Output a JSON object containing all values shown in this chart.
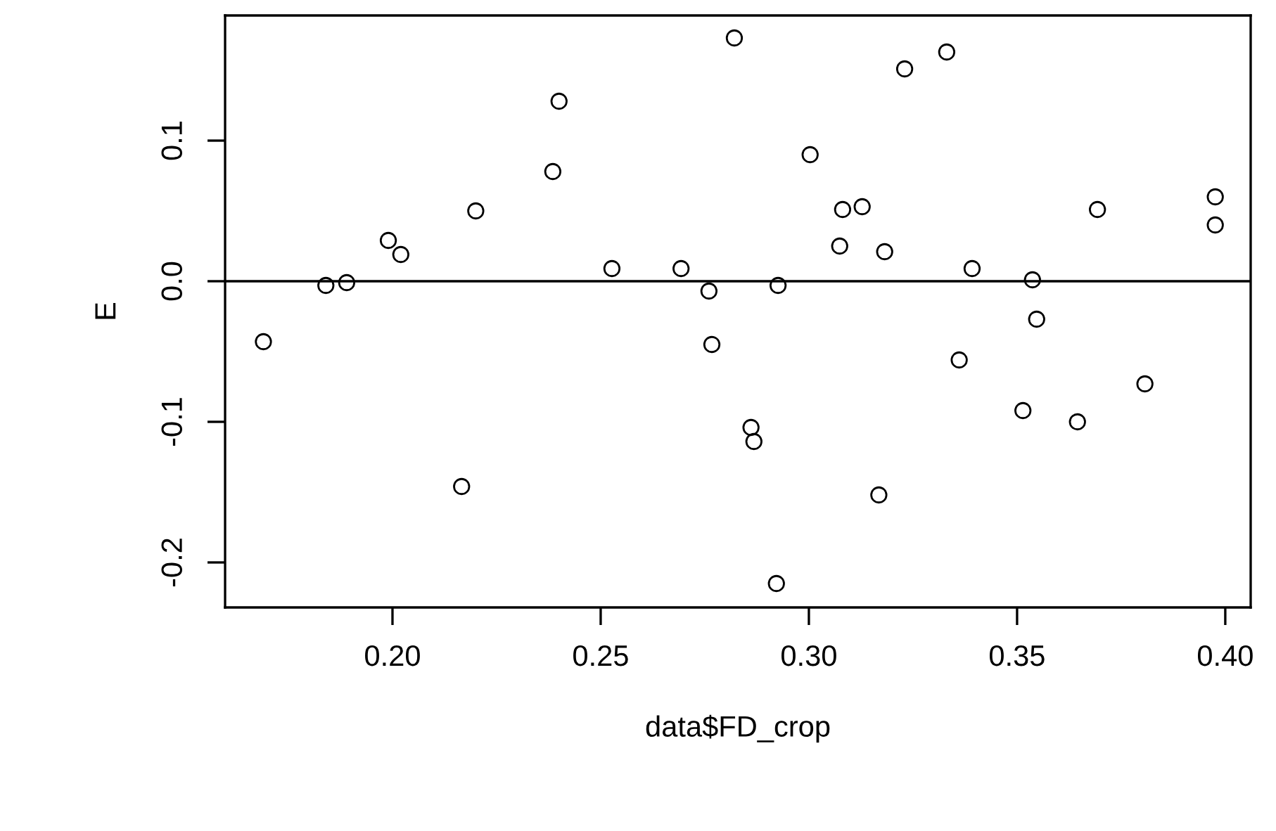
{
  "chart_data": {
    "type": "scatter",
    "xlabel": "data$FD_crop",
    "ylabel": "E",
    "x": [
      0.169,
      0.184,
      0.189,
      0.199,
      0.202,
      0.22,
      0.2166,
      0.2385,
      0.24,
      0.2527,
      0.2693,
      0.276,
      0.2767,
      0.2821,
      0.2861,
      0.2868,
      0.2926,
      0.2922,
      0.3003,
      0.3074,
      0.3081,
      0.3128,
      0.3168,
      0.3182,
      0.323,
      0.3331,
      0.3361,
      0.3392,
      0.3514,
      0.3537,
      0.3547,
      0.3645,
      0.3693,
      0.3807,
      0.3976,
      0.3976
    ],
    "values": [
      -0.043,
      -0.003,
      -0.001,
      0.029,
      0.019,
      0.05,
      -0.146,
      0.078,
      0.128,
      0.009,
      0.009,
      -0.007,
      -0.045,
      0.173,
      -0.104,
      -0.114,
      -0.003,
      -0.215,
      0.09,
      0.025,
      0.051,
      0.053,
      -0.152,
      0.021,
      0.151,
      0.163,
      -0.056,
      0.009,
      -0.092,
      0.001,
      -0.027,
      -0.1,
      0.051,
      -0.073,
      0.06,
      0.04
    ],
    "color": "#000000",
    "marker": "circle",
    "xlim": [
      0.1598,
      0.4061
    ],
    "ylim": [
      -0.232,
      0.189
    ],
    "xticks": [
      {
        "value": 0.2,
        "label": "0.20"
      },
      {
        "value": 0.25,
        "label": "0.25"
      },
      {
        "value": 0.3,
        "label": "0.30"
      },
      {
        "value": 0.35,
        "label": "0.35"
      },
      {
        "value": 0.4,
        "label": "0.40"
      }
    ],
    "yticks": [
      {
        "value": -0.2,
        "label": "-0.2"
      },
      {
        "value": -0.1,
        "label": "-0.1"
      },
      {
        "value": 0.0,
        "label": "0.0"
      },
      {
        "value": 0.1,
        "label": "0.1"
      }
    ],
    "ref_lines": [
      {
        "axis": "y",
        "value": 0,
        "color": "#000000"
      }
    ],
    "grid": false,
    "legend": false
  }
}
